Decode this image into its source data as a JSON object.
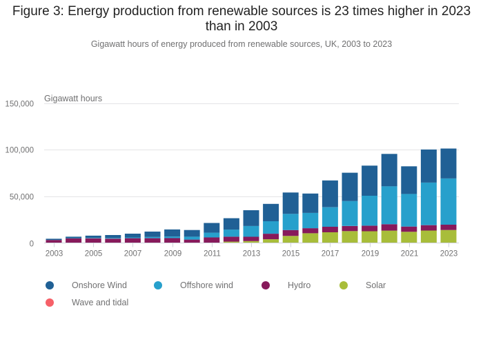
{
  "chart_data": {
    "type": "bar",
    "stacked": true,
    "title": "Figure 3: Energy production from renewable sources is 23 times higher in 2023 than in 2003",
    "subtitle": "Gigawatt hours of energy produced from renewable sources, UK, 2003 to 2023",
    "xlabel": "",
    "ylabel": "Gigawatt hours",
    "ylim": [
      0,
      150000
    ],
    "yticks": [
      0,
      50000,
      100000,
      150000
    ],
    "ytick_labels": [
      "0",
      "50,000",
      "100,000",
      "150,000"
    ],
    "grid": true,
    "legend_position": "bottom",
    "categories": [
      "2003",
      "2004",
      "2005",
      "2006",
      "2007",
      "2008",
      "2009",
      "2010",
      "2011",
      "2012",
      "2013",
      "2014",
      "2015",
      "2016",
      "2017",
      "2018",
      "2019",
      "2020",
      "2021",
      "2022",
      "2023"
    ],
    "xtick_labels": [
      "2003",
      "2005",
      "2007",
      "2009",
      "2011",
      "2013",
      "2015",
      "2017",
      "2019",
      "2021",
      "2023"
    ],
    "series": [
      {
        "name": "Solar",
        "color": "#a8bd3a",
        "values": [
          0,
          0,
          0,
          0,
          0,
          0,
          0,
          0,
          200,
          1400,
          2000,
          4000,
          7500,
          10400,
          11500,
          12700,
          12600,
          13200,
          12000,
          13300,
          13900
        ]
      },
      {
        "name": "Wave and tidal",
        "color": "#f66068",
        "values": [
          0,
          0,
          0,
          0,
          0,
          0,
          0,
          0,
          0,
          0,
          0,
          0,
          0,
          0,
          0,
          0,
          0,
          0,
          0,
          0,
          0
        ]
      },
      {
        "name": "Hydro",
        "color": "#871a5b",
        "values": [
          3200,
          4800,
          4900,
          4600,
          5100,
          5100,
          5200,
          3600,
          5700,
          5300,
          4700,
          5900,
          6300,
          5400,
          5900,
          5500,
          5900,
          6900,
          5600,
          5800,
          5700
        ]
      },
      {
        "name": "Offshore wind",
        "color": "#27a0cc",
        "values": [
          0,
          200,
          400,
          700,
          800,
          1300,
          1700,
          3100,
          5100,
          7600,
          11500,
          13400,
          17400,
          16400,
          20900,
          26700,
          32100,
          40700,
          35000,
          45600,
          49500
        ]
      },
      {
        "name": "Onshore wind",
        "color": "#206095",
        "values": [
          1300,
          1700,
          2500,
          3200,
          4100,
          5800,
          7600,
          7200,
          10400,
          12200,
          16900,
          18600,
          22900,
          20800,
          28700,
          30400,
          32300,
          34700,
          29600,
          35500,
          32100
        ]
      }
    ],
    "legend": [
      "Onshore Wind",
      "Offshore wind",
      "Hydro",
      "Solar",
      "Wave and tidal"
    ]
  },
  "legend_items": [
    {
      "label": "Onshore Wind",
      "color": "#206095"
    },
    {
      "label": "Offshore wind",
      "color": "#27a0cc"
    },
    {
      "label": "Hydro",
      "color": "#871a5b"
    },
    {
      "label": "Solar",
      "color": "#a8bd3a"
    },
    {
      "label": "Wave and tidal",
      "color": "#f66068"
    }
  ]
}
